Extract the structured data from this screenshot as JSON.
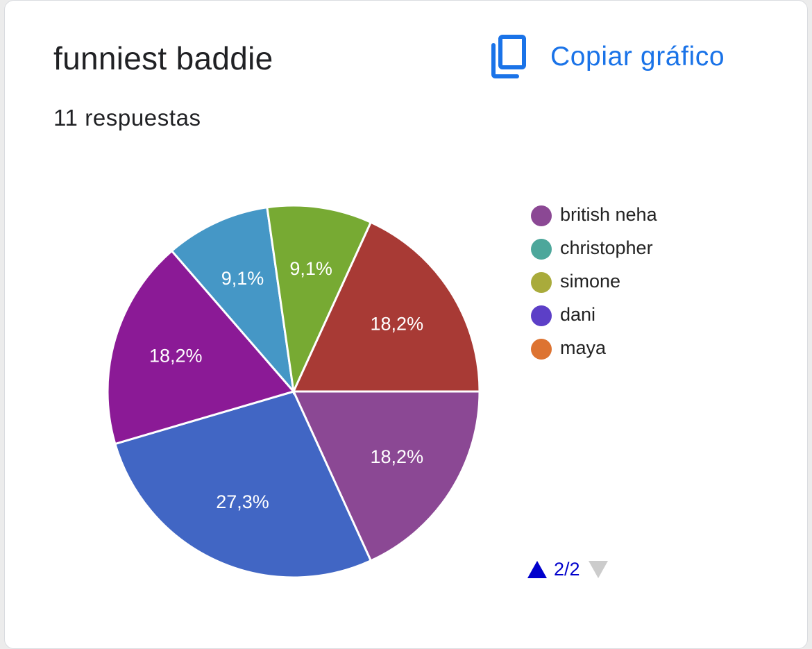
{
  "header": {
    "title": "funniest baddie",
    "responses": "11 respuestas",
    "copy_label": "Copiar gráfico"
  },
  "pager": {
    "label": "2/2",
    "up_color": "#0000cc",
    "down_color": "#cccccc"
  },
  "chart_data": {
    "type": "pie",
    "title": "funniest baddie",
    "legend_position": "right",
    "slices": [
      {
        "label": "",
        "value": 18.2,
        "display": "18,2%",
        "color": "#8b4894"
      },
      {
        "label": "",
        "value": 27.3,
        "display": "27,3%",
        "color": "#4166c4"
      },
      {
        "label": "",
        "value": 18.2,
        "display": "18,2%",
        "color": "#8b1a96"
      },
      {
        "label": "",
        "value": 9.1,
        "display": "9,1%",
        "color": "#4597c6"
      },
      {
        "label": "",
        "value": 9.1,
        "display": "9,1%",
        "color": "#77aa33"
      },
      {
        "label": "",
        "value": 18.2,
        "display": "18,2%",
        "color": "#a83a35"
      }
    ],
    "legend": [
      {
        "label": "british neha",
        "color": "#8b4894"
      },
      {
        "label": "christopher",
        "color": "#4da79b"
      },
      {
        "label": "simone",
        "color": "#a9ab3b"
      },
      {
        "label": "dani",
        "color": "#5c3fc7"
      },
      {
        "label": "maya",
        "color": "#dd7331"
      }
    ]
  }
}
